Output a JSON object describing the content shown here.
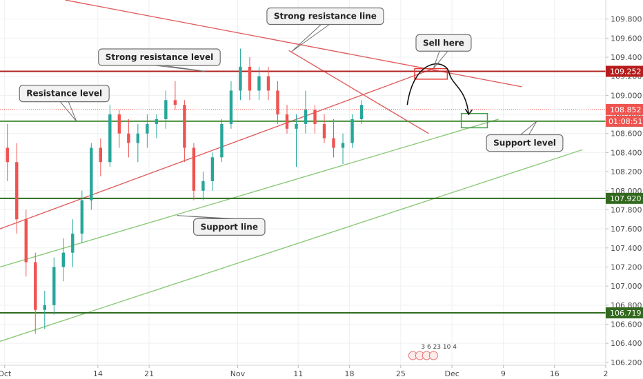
{
  "chart_data": {
    "type": "candlestick",
    "title": "",
    "xlabel": "",
    "ylabel": "",
    "ylim": [
      106.17,
      110.0
    ],
    "xlim": [
      -0.5,
      64.5
    ],
    "grid": true,
    "y_ticks": [
      106.2,
      106.4,
      106.6,
      106.8,
      107.0,
      107.2,
      107.4,
      107.6,
      107.8,
      108.0,
      108.2,
      108.4,
      108.6,
      108.8,
      109.0,
      109.2,
      109.4,
      109.6,
      109.8
    ],
    "y_tick_labels": [
      "106.200",
      "106.400",
      "106.600",
      "106.800",
      "107.000",
      "107.200",
      "107.400",
      "107.600",
      "107.800",
      "108.000",
      "108.200",
      "108.400",
      "108.600",
      "108.800",
      "109.000",
      "109.200",
      "109.400",
      "109.600",
      "109.800"
    ],
    "x_ticks": [
      {
        "label": "Oct",
        "pos": 0
      },
      {
        "label": "14",
        "pos": 10
      },
      {
        "label": "21",
        "pos": 15.5
      },
      {
        "label": "Nov",
        "pos": 25
      },
      {
        "label": "11",
        "pos": 31.5
      },
      {
        "label": "18",
        "pos": 37
      },
      {
        "label": "25",
        "pos": 42.5
      },
      {
        "label": "Dec",
        "pos": 48
      },
      {
        "label": "9",
        "pos": 53.5
      },
      {
        "label": "16",
        "pos": 59
      },
      {
        "label": "2",
        "pos": 64.5
      }
    ],
    "candles": [
      [
        108.45,
        108.7,
        108.1,
        108.3
      ],
      [
        108.3,
        108.5,
        107.55,
        107.7
      ],
      [
        107.7,
        107.8,
        107.1,
        107.25
      ],
      [
        107.25,
        107.35,
        106.5,
        106.75
      ],
      [
        106.75,
        106.95,
        106.55,
        106.8
      ],
      [
        106.8,
        107.3,
        106.7,
        107.2
      ],
      [
        107.2,
        107.5,
        107.05,
        107.35
      ],
      [
        107.35,
        107.7,
        107.2,
        107.55
      ],
      [
        107.55,
        108.0,
        107.45,
        107.9
      ],
      [
        107.9,
        108.5,
        107.8,
        108.45
      ],
      [
        108.45,
        108.55,
        108.15,
        108.3
      ],
      [
        108.3,
        108.9,
        108.25,
        108.8
      ],
      [
        108.8,
        108.85,
        108.45,
        108.6
      ],
      [
        108.6,
        108.75,
        108.35,
        108.5
      ],
      [
        108.5,
        108.7,
        108.3,
        108.6
      ],
      [
        108.6,
        108.8,
        108.45,
        108.7
      ],
      [
        108.7,
        108.8,
        108.55,
        108.75
      ],
      [
        108.75,
        109.05,
        108.65,
        108.95
      ],
      [
        108.95,
        109.15,
        108.85,
        108.9
      ],
      [
        108.9,
        108.95,
        108.3,
        108.45
      ],
      [
        108.45,
        108.5,
        107.9,
        108.0
      ],
      [
        108.0,
        108.2,
        107.9,
        108.1
      ],
      [
        108.1,
        108.4,
        108.0,
        108.35
      ],
      [
        108.35,
        108.75,
        108.3,
        108.7
      ],
      [
        108.7,
        109.15,
        108.65,
        109.05
      ],
      [
        109.05,
        109.49,
        108.95,
        109.3
      ],
      [
        109.3,
        109.4,
        108.95,
        109.05
      ],
      [
        109.05,
        109.3,
        108.95,
        109.2
      ],
      [
        109.2,
        109.3,
        108.95,
        109.05
      ],
      [
        109.05,
        109.15,
        108.7,
        108.8
      ],
      [
        108.8,
        108.9,
        108.6,
        108.65
      ],
      [
        108.65,
        108.8,
        108.25,
        108.7
      ],
      [
        108.7,
        109.05,
        108.6,
        108.85
      ],
      [
        108.85,
        108.9,
        108.6,
        108.7
      ],
      [
        108.7,
        108.8,
        108.5,
        108.55
      ],
      [
        108.55,
        108.75,
        108.35,
        108.45
      ],
      [
        108.45,
        108.6,
        108.28,
        108.5
      ],
      [
        108.5,
        108.8,
        108.45,
        108.75
      ],
      [
        108.75,
        108.95,
        108.7,
        108.9
      ]
    ],
    "horizontal_levels": [
      {
        "value": 109.252,
        "label": "109.252",
        "color": "#b22222",
        "badge_color": "#b71c1c"
      },
      {
        "value": 108.729,
        "label": "108.729",
        "color": "#4a8f3a",
        "badge_color": "#3f7f2a"
      },
      {
        "value": 107.92,
        "label": "107.920",
        "color": "#2e6b1f",
        "badge_color": "#33691e"
      },
      {
        "value": 106.719,
        "label": "106.719",
        "color": "#2e6b1f",
        "badge_color": "#33691e"
      }
    ],
    "last_price": {
      "value": 108.852,
      "label": "108.852",
      "countdown": "01:08:51",
      "color": "#ef5350"
    },
    "trendlines": [
      {
        "name": "red-resistance-trendline",
        "color": "#e06060",
        "points": [
          [
            6.5,
            110.0
          ],
          [
            55.5,
            109.09
          ]
        ]
      },
      {
        "name": "red-steep-trendline",
        "color": "#e06060",
        "points": [
          [
            30.5,
            109.47
          ],
          [
            45.5,
            108.6
          ]
        ]
      },
      {
        "name": "red-support-to-resistance",
        "color": "#e06060",
        "points": [
          [
            -0.5,
            107.6
          ],
          [
            46.0,
            109.28
          ]
        ]
      },
      {
        "name": "green-support-line",
        "color": "#8cc97a",
        "points": [
          [
            -0.5,
            107.2
          ],
          [
            53.0,
            108.75
          ]
        ]
      },
      {
        "name": "green-lower-channel",
        "color": "#8cc97a",
        "points": [
          [
            -0.5,
            106.42
          ],
          [
            62.0,
            108.43
          ]
        ]
      }
    ],
    "boxes": [
      {
        "name": "sell-zone-box",
        "color": "#e53935",
        "x0": 44.0,
        "x1": 47.5,
        "y0": 109.17,
        "y1": 109.28
      },
      {
        "name": "target-zone-box",
        "color": "#43a047",
        "x0": 49.0,
        "x1": 51.8,
        "y0": 108.66,
        "y1": 108.81
      }
    ],
    "annotations": [
      {
        "text": "Strong resistance line",
        "pos": [
          34.4,
          109.83
        ]
      },
      {
        "text": "Sell here",
        "pos": [
          47.1,
          109.55
        ]
      },
      {
        "text": "Strong resistance level",
        "pos": [
          16.6,
          109.4
        ]
      },
      {
        "text": "Resistance level",
        "pos": [
          6.4,
          109.02
        ]
      },
      {
        "text": "Support level",
        "pos": [
          55.8,
          108.5
        ]
      },
      {
        "text": "Support line",
        "pos": [
          24.1,
          107.62
        ]
      }
    ],
    "events_label": "3  6  23  10  4"
  }
}
